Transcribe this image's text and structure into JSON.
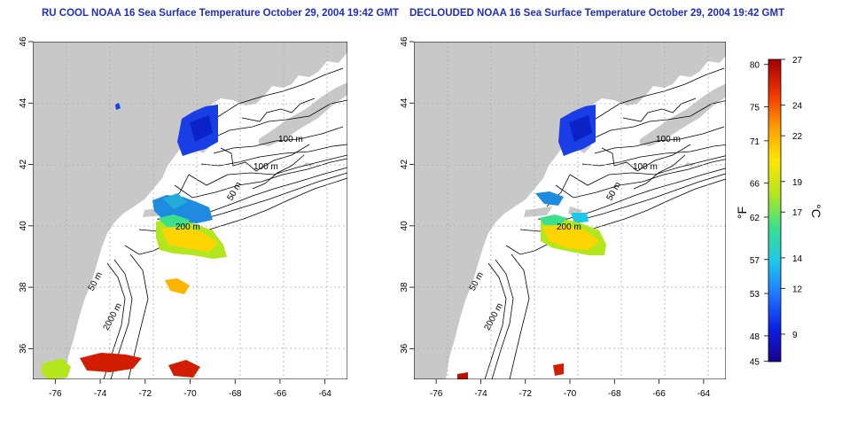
{
  "titles": {
    "left": "RU COOL NOAA 16 Sea Surface Temperature October 29, 2004 19:42 GMT",
    "right": "DECLOUDED NOAA 16 Sea Surface Temperature October 29, 2004 19:42 GMT"
  },
  "axes": {
    "lon_range": [
      -77.0,
      -63.0
    ],
    "lat_range": [
      35.0,
      46.0
    ],
    "lon_ticks": [
      -76,
      -74,
      -72,
      -70,
      -68,
      -66,
      -64
    ],
    "lat_ticks": [
      36,
      38,
      40,
      42,
      44,
      46
    ],
    "grid": true,
    "grid_style": "dotted"
  },
  "contour_labels": [
    "100 m",
    "100 m",
    "50 m",
    "200 m",
    "50 m",
    "2000 m"
  ],
  "colorbar": {
    "fahrenheit_label": "°F",
    "celsius_label": "°C",
    "fahrenheit_ticks": [
      "80",
      "75",
      "71",
      "66",
      "62",
      "57",
      "53",
      "48",
      "45"
    ],
    "celsius_ticks": [
      "27",
      "24",
      "22",
      "19",
      "17",
      "14",
      "12",
      "9"
    ],
    "celsius_range": [
      7.2,
      27.0
    ],
    "colors": [
      "#1a008c",
      "#0a22e6",
      "#1f78ff",
      "#1ec8e8",
      "#3ce08c",
      "#b4e61e",
      "#ffe600",
      "#ff9b00",
      "#f03200",
      "#a00000"
    ]
  },
  "colors": {
    "land": "#c8c8c8",
    "ocean": "#ffffff",
    "contour": "#000000",
    "grid": "#aaaaaa"
  }
}
